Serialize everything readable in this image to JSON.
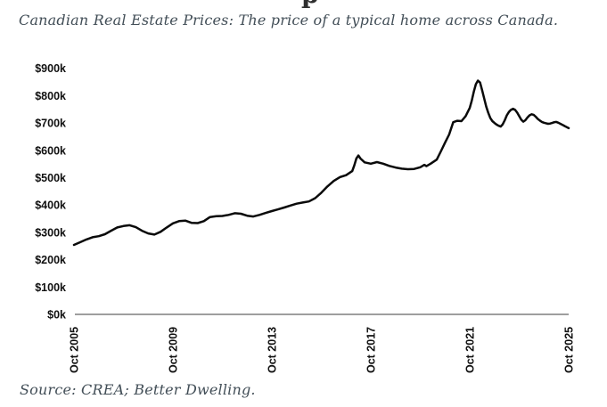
{
  "page": {
    "background_color": "#ffffff"
  },
  "header": {
    "clipped_text_fragment": "p"
  },
  "source": {
    "text": "Source: CREA; Better Dwelling."
  },
  "chart_data": {
    "type": "line",
    "title": "Canadian Real Estate Prices: The price of a typical home across Canada.",
    "series_name": "Typical home price across Canada",
    "units": "CAD, thousands",
    "xlabel": "",
    "ylabel": "",
    "grid": false,
    "legend": "none",
    "ylim": [
      0,
      900
    ],
    "y_tick_step": 100,
    "line_color": "#0a0a0a",
    "axis_color": "#7f7f7f",
    "tick_label_color": "#111111",
    "y_ticks": [
      {
        "value": 0,
        "label": "$0k"
      },
      {
        "value": 100,
        "label": "$100k"
      },
      {
        "value": 200,
        "label": "$200k"
      },
      {
        "value": 300,
        "label": "$300k"
      },
      {
        "value": 400,
        "label": "$400k"
      },
      {
        "value": 500,
        "label": "$500k"
      },
      {
        "value": 600,
        "label": "$600k"
      },
      {
        "value": 700,
        "label": "$700k"
      },
      {
        "value": 800,
        "label": "$800k"
      },
      {
        "value": 900,
        "label": "$900k"
      }
    ],
    "x_ticks": [
      {
        "date": "2005-10",
        "label": "Oct 2005"
      },
      {
        "date": "2009-10",
        "label": "Oct 2009"
      },
      {
        "date": "2013-10",
        "label": "Oct 2013"
      },
      {
        "date": "2017-10",
        "label": "Oct 2017"
      },
      {
        "date": "2021-10",
        "label": "Oct 2021"
      },
      {
        "date": "2025-10",
        "label": "Oct 2025"
      }
    ],
    "points": [
      [
        "2005-10",
        254
      ],
      [
        "2006-01",
        264
      ],
      [
        "2006-04",
        274
      ],
      [
        "2006-07",
        282
      ],
      [
        "2006-10",
        286
      ],
      [
        "2007-01",
        293
      ],
      [
        "2007-04",
        306
      ],
      [
        "2007-07",
        318
      ],
      [
        "2007-10",
        323
      ],
      [
        "2008-01",
        326
      ],
      [
        "2008-04",
        319
      ],
      [
        "2008-07",
        306
      ],
      [
        "2008-10",
        296
      ],
      [
        "2009-01",
        292
      ],
      [
        "2009-04",
        302
      ],
      [
        "2009-07",
        318
      ],
      [
        "2009-10",
        333
      ],
      [
        "2010-01",
        341
      ],
      [
        "2010-04",
        343
      ],
      [
        "2010-07",
        335
      ],
      [
        "2010-10",
        334
      ],
      [
        "2011-01",
        341
      ],
      [
        "2011-04",
        356
      ],
      [
        "2011-07",
        359
      ],
      [
        "2011-10",
        360
      ],
      [
        "2012-01",
        364
      ],
      [
        "2012-04",
        370
      ],
      [
        "2012-07",
        368
      ],
      [
        "2012-10",
        361
      ],
      [
        "2013-01",
        358
      ],
      [
        "2013-04",
        364
      ],
      [
        "2013-07",
        371
      ],
      [
        "2013-10",
        378
      ],
      [
        "2014-01",
        384
      ],
      [
        "2014-04",
        391
      ],
      [
        "2014-07",
        398
      ],
      [
        "2014-10",
        405
      ],
      [
        "2015-01",
        409
      ],
      [
        "2015-04",
        413
      ],
      [
        "2015-07",
        425
      ],
      [
        "2015-10",
        445
      ],
      [
        "2016-01",
        468
      ],
      [
        "2016-04",
        488
      ],
      [
        "2016-07",
        502
      ],
      [
        "2016-10",
        509
      ],
      [
        "2017-01",
        524
      ],
      [
        "2017-02",
        545
      ],
      [
        "2017-03",
        570
      ],
      [
        "2017-04",
        581
      ],
      [
        "2017-05",
        570
      ],
      [
        "2017-07",
        556
      ],
      [
        "2017-10",
        551
      ],
      [
        "2018-01",
        557
      ],
      [
        "2018-04",
        551
      ],
      [
        "2018-07",
        543
      ],
      [
        "2018-10",
        537
      ],
      [
        "2019-01",
        533
      ],
      [
        "2019-04",
        531
      ],
      [
        "2019-07",
        532
      ],
      [
        "2019-10",
        538
      ],
      [
        "2019-12",
        547
      ],
      [
        "2020-01",
        542
      ],
      [
        "2020-03",
        551
      ],
      [
        "2020-06",
        566
      ],
      [
        "2020-08",
        596
      ],
      [
        "2020-10",
        628
      ],
      [
        "2020-12",
        658
      ],
      [
        "2021-02",
        703
      ],
      [
        "2021-04",
        708
      ],
      [
        "2021-06",
        707
      ],
      [
        "2021-08",
        725
      ],
      [
        "2021-10",
        755
      ],
      [
        "2021-11",
        782
      ],
      [
        "2021-12",
        815
      ],
      [
        "2022-01",
        842
      ],
      [
        "2022-02",
        855
      ],
      [
        "2022-03",
        848
      ],
      [
        "2022-04",
        820
      ],
      [
        "2022-05",
        790
      ],
      [
        "2022-06",
        760
      ],
      [
        "2022-07",
        737
      ],
      [
        "2022-08",
        718
      ],
      [
        "2022-09",
        707
      ],
      [
        "2022-10",
        700
      ],
      [
        "2022-11",
        694
      ],
      [
        "2022-12",
        690
      ],
      [
        "2023-01",
        687
      ],
      [
        "2023-02",
        695
      ],
      [
        "2023-03",
        710
      ],
      [
        "2023-04",
        728
      ],
      [
        "2023-05",
        740
      ],
      [
        "2023-06",
        748
      ],
      [
        "2023-07",
        752
      ],
      [
        "2023-08",
        748
      ],
      [
        "2023-09",
        738
      ],
      [
        "2023-10",
        725
      ],
      [
        "2023-11",
        712
      ],
      [
        "2023-12",
        705
      ],
      [
        "2024-01",
        710
      ],
      [
        "2024-02",
        720
      ],
      [
        "2024-03",
        728
      ],
      [
        "2024-04",
        732
      ],
      [
        "2024-05",
        730
      ],
      [
        "2024-06",
        723
      ],
      [
        "2024-07",
        715
      ],
      [
        "2024-08",
        709
      ],
      [
        "2024-09",
        704
      ],
      [
        "2024-10",
        701
      ],
      [
        "2024-11",
        699
      ],
      [
        "2024-12",
        697
      ],
      [
        "2025-01",
        698
      ],
      [
        "2025-02",
        700
      ],
      [
        "2025-03",
        703
      ],
      [
        "2025-04",
        704
      ],
      [
        "2025-05",
        701
      ],
      [
        "2025-06",
        697
      ],
      [
        "2025-07",
        693
      ],
      [
        "2025-08",
        689
      ],
      [
        "2025-09",
        685
      ],
      [
        "2025-10",
        681
      ]
    ]
  }
}
